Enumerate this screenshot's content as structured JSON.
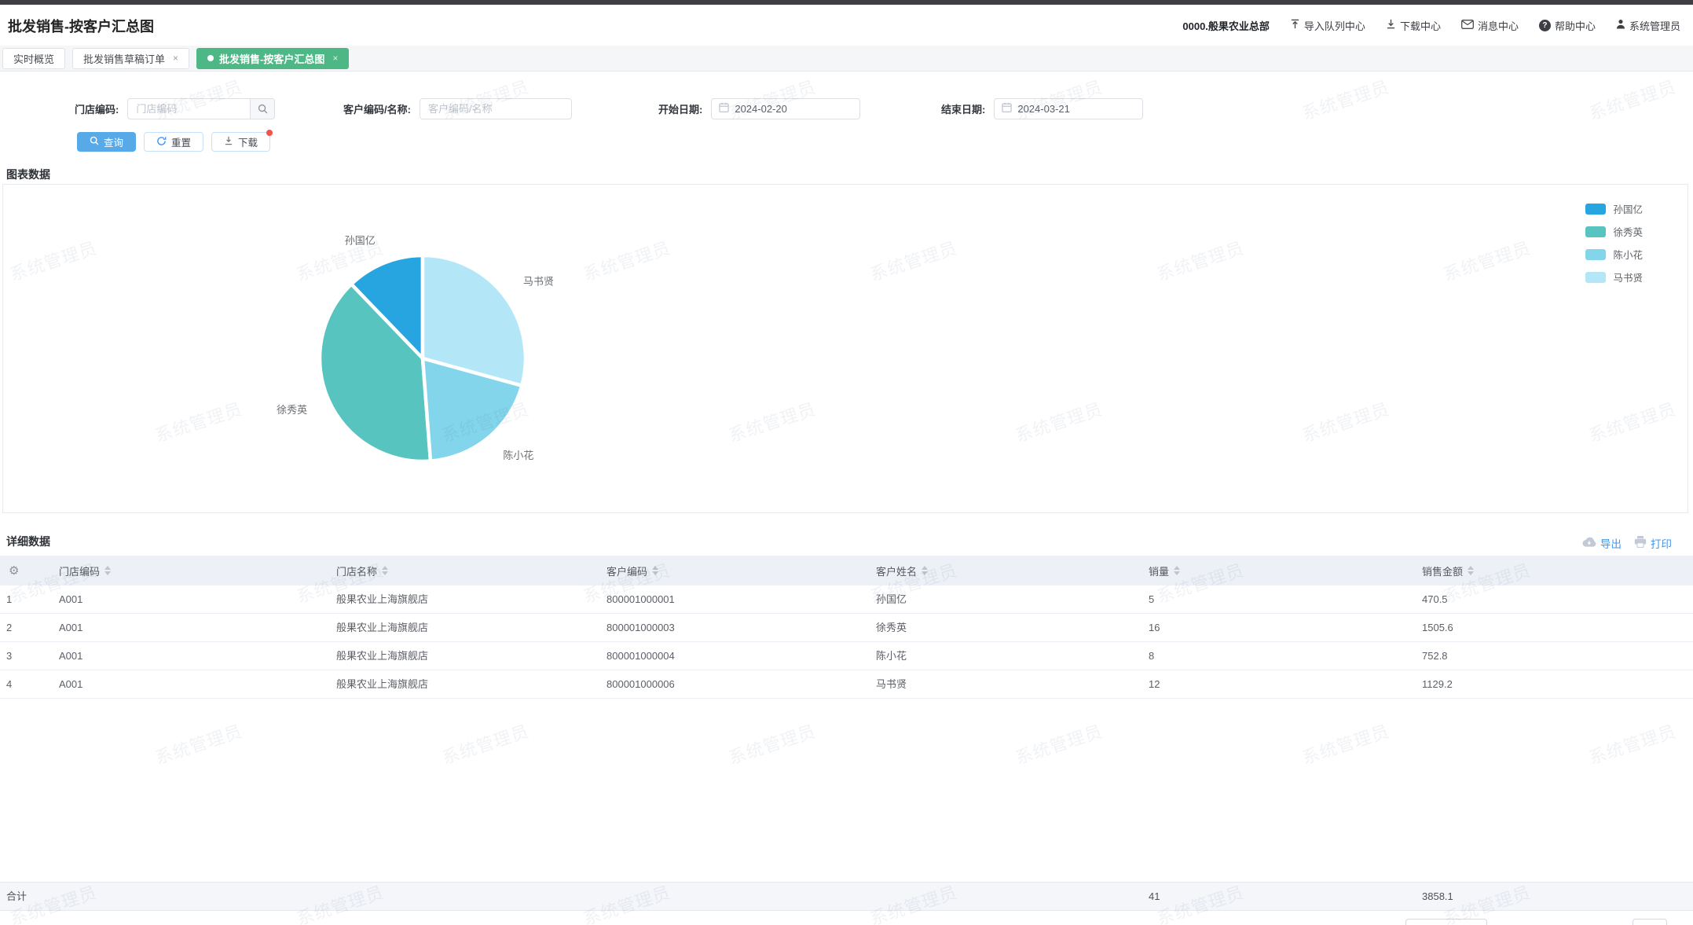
{
  "header": {
    "title": "批发销售-按客户汇总图",
    "org": "0000.般果农业总部",
    "menu": [
      {
        "label": "导入队列中心",
        "icon": "import-queue-icon"
      },
      {
        "label": "下载中心",
        "icon": "download-center-icon"
      },
      {
        "label": "消息中心",
        "icon": "message-icon"
      },
      {
        "label": "帮助中心",
        "icon": "help-icon"
      },
      {
        "label": "系统管理员",
        "icon": "user-icon"
      }
    ]
  },
  "tabs": [
    {
      "label": "实时概览",
      "closable": false,
      "active": false
    },
    {
      "label": "批发销售草稿订单",
      "closable": true,
      "active": false
    },
    {
      "label": "批发销售-按客户汇总图",
      "closable": true,
      "active": true
    }
  ],
  "filters": {
    "store_code": {
      "label": "门店编码:",
      "placeholder": "门店编码",
      "value": ""
    },
    "customer": {
      "label": "客户编码/名称:",
      "placeholder": "客户编码/名称",
      "value": ""
    },
    "start_date": {
      "label": "开始日期:",
      "value": "2024-02-20"
    },
    "end_date": {
      "label": "结束日期:",
      "value": "2024-03-21"
    }
  },
  "actions": {
    "search": "查询",
    "reset": "重置",
    "download": "下载"
  },
  "sections": {
    "chart": "图表数据",
    "detail": "详细数据"
  },
  "table_actions": {
    "export": "导出",
    "print": "打印"
  },
  "chart_data": {
    "type": "pie",
    "title": "",
    "categories": [
      "孙国亿",
      "徐秀英",
      "陈小花",
      "马书贤"
    ],
    "values": [
      470.5,
      1505.6,
      752.8,
      1129.2
    ],
    "colors": [
      "#27a5e0",
      "#58c4c0",
      "#82d5ea",
      "#b3e7f8"
    ],
    "legend_position": "top-right",
    "start_angle_deg": 90,
    "direction": "counterclockwise"
  },
  "table": {
    "columns": [
      "门店编码",
      "门店名称",
      "客户编码",
      "客户姓名",
      "销量",
      "销售金额"
    ],
    "rows": [
      {
        "idx": "1",
        "store_code": "A001",
        "store_name": "般果农业上海旗舰店",
        "customer_code": "800001000001",
        "customer_name": "孙国亿",
        "qty": "5",
        "amount": "470.5"
      },
      {
        "idx": "2",
        "store_code": "A001",
        "store_name": "般果农业上海旗舰店",
        "customer_code": "800001000003",
        "customer_name": "徐秀英",
        "qty": "16",
        "amount": "1505.6"
      },
      {
        "idx": "3",
        "store_code": "A001",
        "store_name": "般果农业上海旗舰店",
        "customer_code": "800001000004",
        "customer_name": "陈小花",
        "qty": "8",
        "amount": "752.8"
      },
      {
        "idx": "4",
        "store_code": "A001",
        "store_name": "般果农业上海旗舰店",
        "customer_code": "800001000006",
        "customer_name": "马书贤",
        "qty": "12",
        "amount": "1129.2"
      }
    ],
    "total": {
      "label": "合计",
      "qty": "41",
      "amount": "3858.1"
    }
  },
  "watermark": {
    "text": "系统管理员"
  },
  "colors": {
    "accent_green": "#4db885",
    "primary_blue": "#57a9e8",
    "link_blue": "#4596e8",
    "badge_red": "#f5524d"
  }
}
